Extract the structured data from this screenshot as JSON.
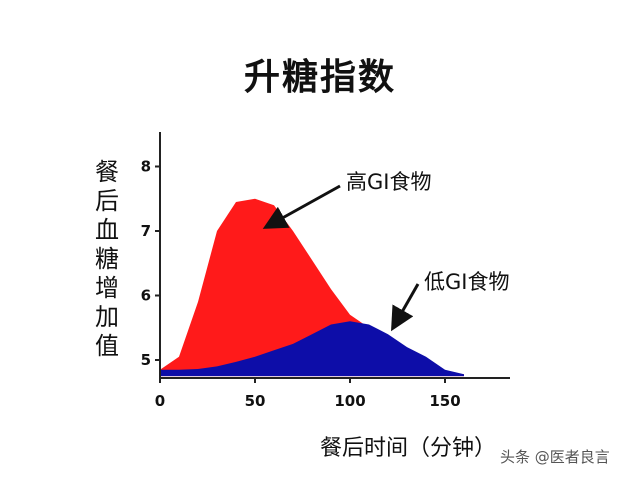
{
  "page": {
    "title": "升糖指数",
    "watermark": "头条 @医者良言"
  },
  "chart_data": {
    "type": "area",
    "title": "升糖指数",
    "xlabel": "餐后时间（分钟）",
    "ylabel": "餐后血糖增加值",
    "xlim": [
      0,
      180
    ],
    "ylim": [
      4.75,
      8.5
    ],
    "xticks": [
      0,
      50,
      100,
      150
    ],
    "yticks": [
      5,
      6,
      7,
      8
    ],
    "series": [
      {
        "name": "高GI食物",
        "color": "#ff1a1a",
        "x": [
          0,
          10,
          20,
          30,
          40,
          50,
          60,
          70,
          80,
          90,
          100,
          110,
          120,
          130,
          140,
          150,
          160
        ],
        "y": [
          4.85,
          5.05,
          5.9,
          7.0,
          7.45,
          7.5,
          7.4,
          7.0,
          6.55,
          6.1,
          5.7,
          5.5,
          5.25,
          5.05,
          4.9,
          4.8,
          4.78
        ]
      },
      {
        "name": "低GI食物",
        "color": "#0d0da8",
        "x": [
          0,
          10,
          20,
          30,
          40,
          50,
          60,
          70,
          80,
          90,
          100,
          110,
          120,
          130,
          140,
          150,
          160
        ],
        "y": [
          4.85,
          4.85,
          4.86,
          4.9,
          4.97,
          5.05,
          5.15,
          5.25,
          5.4,
          5.55,
          5.6,
          5.55,
          5.4,
          5.2,
          5.05,
          4.85,
          4.78
        ]
      }
    ],
    "annotations": [
      {
        "text": "高GI食物"
      },
      {
        "text": "低GI食物"
      }
    ]
  }
}
